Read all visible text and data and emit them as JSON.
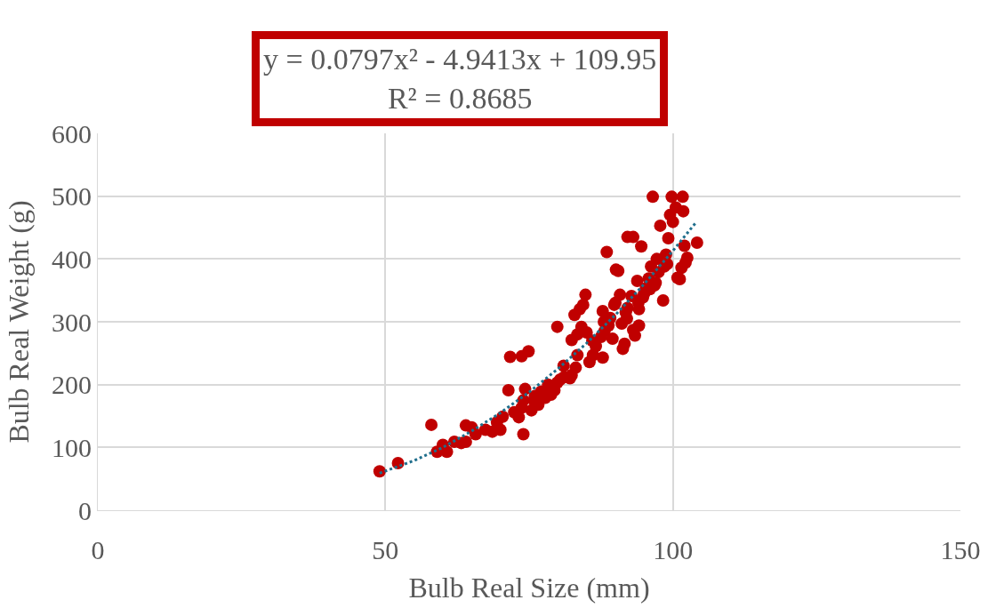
{
  "chart_data": {
    "type": "scatter",
    "xlabel": "Bulb Real Size (mm)",
    "ylabel": "Bulb Real Weight (g)",
    "xlim": [
      0,
      150
    ],
    "xticks": [
      0,
      50,
      100,
      150
    ],
    "ylim": [
      0,
      600
    ],
    "yticks": [
      0,
      100,
      200,
      300,
      400,
      500,
      600
    ],
    "grid": true,
    "marker": "circle",
    "annotations": [
      "y = 0.0797x² - 4.9413x + 109.95\nR² = 0.8685"
    ],
    "series": [
      {
        "color": "#c00000",
        "x": [
          49,
          52.2,
          58,
          59,
          60,
          60.7,
          62,
          63.2,
          64,
          64,
          65,
          65.7,
          67.4,
          68.6,
          69.4,
          70,
          70.4,
          71.4,
          72.4,
          73.2,
          73.7,
          74,
          74,
          71.7,
          73.7,
          74.9,
          74.3,
          75.4,
          75.8,
          76.6,
          77.1,
          77.8,
          78.3,
          78.8,
          79.4,
          79.9,
          80.4,
          81.1,
          79.9,
          82.1,
          82.4,
          82.4,
          82.9,
          83.8,
          84.1,
          84.4,
          84.8,
          83.4,
          85,
          83.4,
          83.1,
          85.5,
          86.1,
          86.6,
          87.5,
          87.8,
          88.1,
          88.5,
          88.8,
          87.8,
          89.1,
          89.5,
          89.8,
          90.1,
          90.5,
          90.8,
          91.1,
          91.3,
          91.6,
          91.8,
          92.1,
          92.1,
          93.1,
          92.8,
          93.1,
          93.4,
          93.8,
          94.1,
          94.5,
          94.1,
          94.8,
          95.3,
          95.8,
          96.2,
          96.5,
          96.8,
          97.2,
          97.5,
          97.8,
          98.3,
          98.5,
          98.8,
          99.2,
          99.5,
          99.8,
          100,
          100.5,
          100.8,
          101.2,
          101.7,
          101.8,
          101.5,
          102.2,
          102.5,
          104.2,
          102,
          76,
          81,
          86,
          88,
          90,
          92,
          94,
          95,
          96,
          97,
          99
        ],
        "values": [
          62,
          75,
          136,
          93,
          104,
          93,
          109,
          107,
          135,
          109,
          132,
          121,
          128,
          125,
          140,
          128,
          149,
          191,
          156,
          148,
          163,
          175,
          121,
          244,
          245,
          253,
          193,
          159,
          175,
          168,
          189,
          179,
          200,
          184,
          191,
          203,
          208,
          212,
          292,
          210,
          215,
          271,
          311,
          320,
          292,
          327,
          343,
          280,
          283,
          247,
          227,
          236,
          247,
          261,
          276,
          243,
          285,
          411,
          294,
          317,
          306,
          273,
          327,
          383,
          381,
          343,
          297,
          257,
          265,
          315,
          322,
          435,
          435,
          341,
          287,
          278,
          365,
          294,
          420,
          320,
          339,
          353,
          369,
          388,
          499,
          358,
          400,
          379,
          453,
          334,
          388,
          407,
          433,
          470,
          499,
          459,
          482,
          370,
          368,
          499,
          476,
          386,
          394,
          402,
          426,
          421,
          182,
          230,
          270,
          300,
          330,
          305,
          330,
          345,
          352,
          362,
          392
        ]
      },
      {
        "type": "line",
        "color": "#1f6e8c",
        "line_style": "dotted",
        "marker": "none",
        "x": [
          49,
          55,
          60,
          65,
          70,
          75,
          80,
          85,
          90,
          95,
          100,
          104
        ],
        "values": [
          59,
          79,
          100,
          126,
          155,
          188,
          225,
          266,
          311,
          360,
          413,
          458
        ]
      }
    ]
  }
}
